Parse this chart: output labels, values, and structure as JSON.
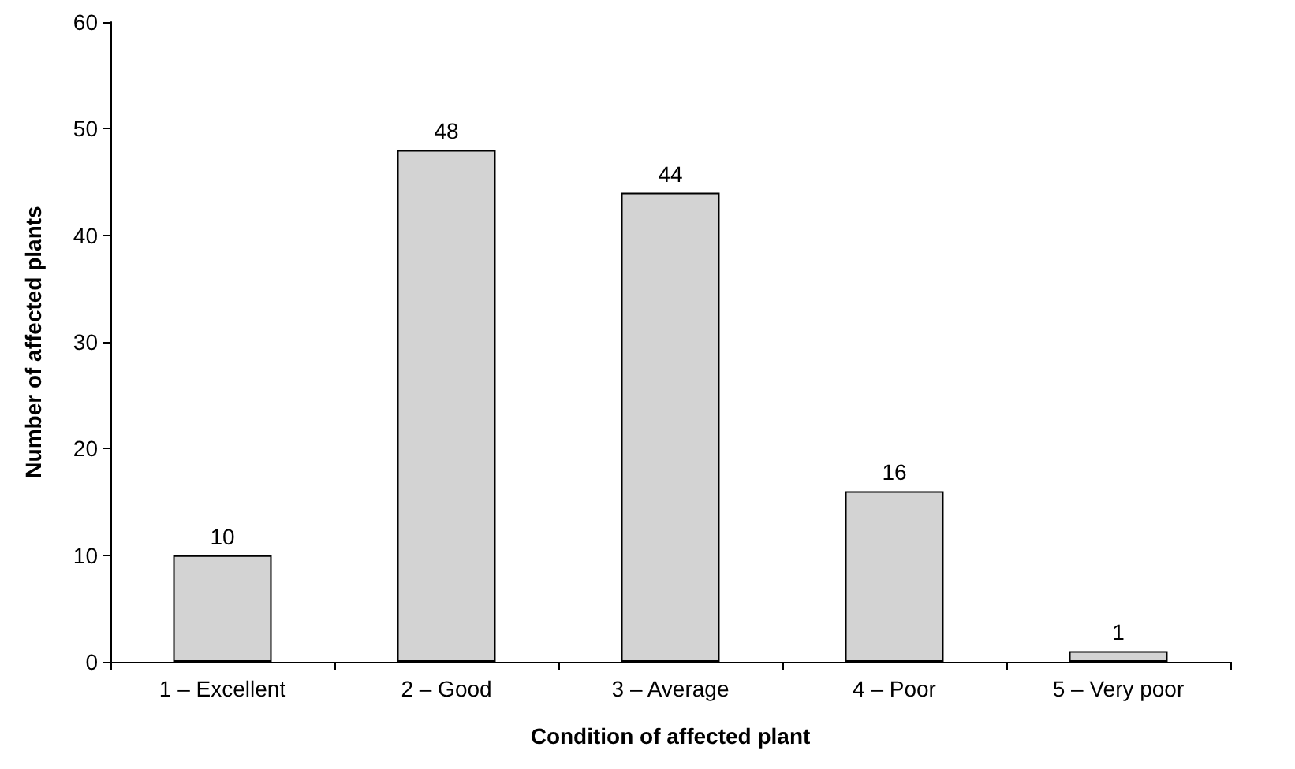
{
  "chart_data": {
    "type": "bar",
    "xlabel": "Condition of affected plant",
    "ylabel": "Number of affected plants",
    "categories": [
      "1 – Excellent",
      "2 – Good",
      "3 – Average",
      "4 – Poor",
      "5 – Very poor"
    ],
    "values": [
      10,
      48,
      44,
      16,
      1
    ],
    "color": "#d3d3d3",
    "ylim": [
      0,
      60
    ],
    "yticks": [
      0,
      10,
      20,
      30,
      40,
      50,
      60
    ],
    "data_labels": true,
    "grid": false
  }
}
